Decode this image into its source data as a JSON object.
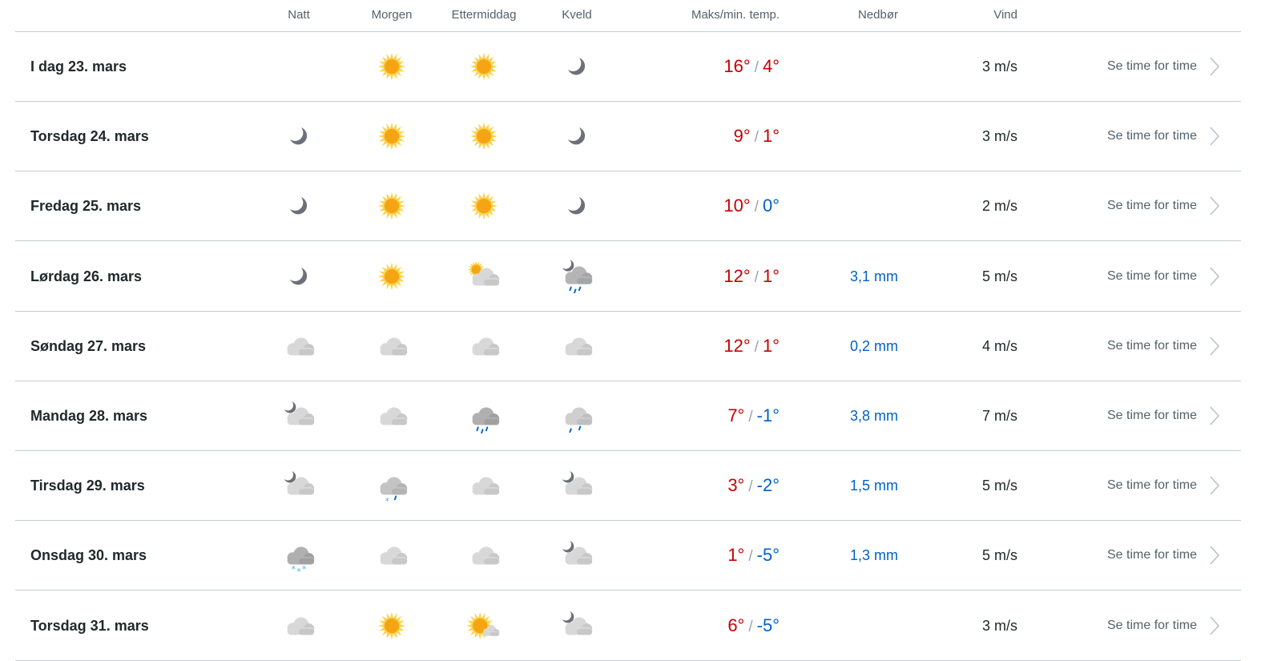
{
  "header": {
    "natt": "Natt",
    "morgen": "Morgen",
    "ettermiddag": "Ettermiddag",
    "kveld": "Kveld",
    "temp": "Maks/min. temp.",
    "nedbor": "Nedbør",
    "vind": "Vind"
  },
  "colors": {
    "warm": "#c60000",
    "cold": "#0062c6",
    "precip": "#0062c6"
  },
  "link_label": "Se time for time",
  "days": [
    {
      "label": "I dag 23. mars",
      "icons": [
        "",
        "sun",
        "sun",
        "moon"
      ],
      "max": "16°",
      "min": "4°",
      "precip": "",
      "wind": "3 m/s"
    },
    {
      "label": "Torsdag 24. mars",
      "icons": [
        "moon",
        "sun",
        "sun",
        "moon"
      ],
      "max": "9°",
      "min": "1°",
      "precip": "",
      "wind": "3 m/s"
    },
    {
      "label": "Fredag 25. mars",
      "icons": [
        "moon",
        "sun",
        "sun",
        "moon"
      ],
      "max": "10°",
      "min": "0°",
      "precip": "",
      "wind": "2 m/s"
    },
    {
      "label": "Lørdag 26. mars",
      "icons": [
        "moon",
        "sun",
        "partly-cloudy-day",
        "rain-showers-night"
      ],
      "max": "12°",
      "min": "1°",
      "precip": "3,1 mm",
      "wind": "5 m/s"
    },
    {
      "label": "Søndag 27. mars",
      "icons": [
        "cloud",
        "cloud",
        "cloud",
        "cloud"
      ],
      "max": "12°",
      "min": "1°",
      "precip": "0,2 mm",
      "wind": "4 m/s"
    },
    {
      "label": "Mandag 28. mars",
      "icons": [
        "partly-cloudy-night",
        "cloud",
        "rain",
        "light-rain"
      ],
      "max": "7°",
      "min": "-1°",
      "precip": "3,8 mm",
      "wind": "7 m/s"
    },
    {
      "label": "Tirsdag 29. mars",
      "icons": [
        "partly-cloudy-night",
        "light-sleet",
        "cloud",
        "partly-cloudy-night"
      ],
      "max": "3°",
      "min": "-2°",
      "precip": "1,5 mm",
      "wind": "5 m/s"
    },
    {
      "label": "Onsdag 30. mars",
      "icons": [
        "snow",
        "cloud",
        "cloud",
        "partly-cloudy-night"
      ],
      "max": "1°",
      "min": "-5°",
      "precip": "1,3 mm",
      "wind": "5 m/s"
    },
    {
      "label": "Torsdag 31. mars",
      "icons": [
        "cloud",
        "sun",
        "fair-day",
        "partly-cloudy-night"
      ],
      "max": "6°",
      "min": "-5°",
      "precip": "",
      "wind": "3 m/s"
    }
  ]
}
